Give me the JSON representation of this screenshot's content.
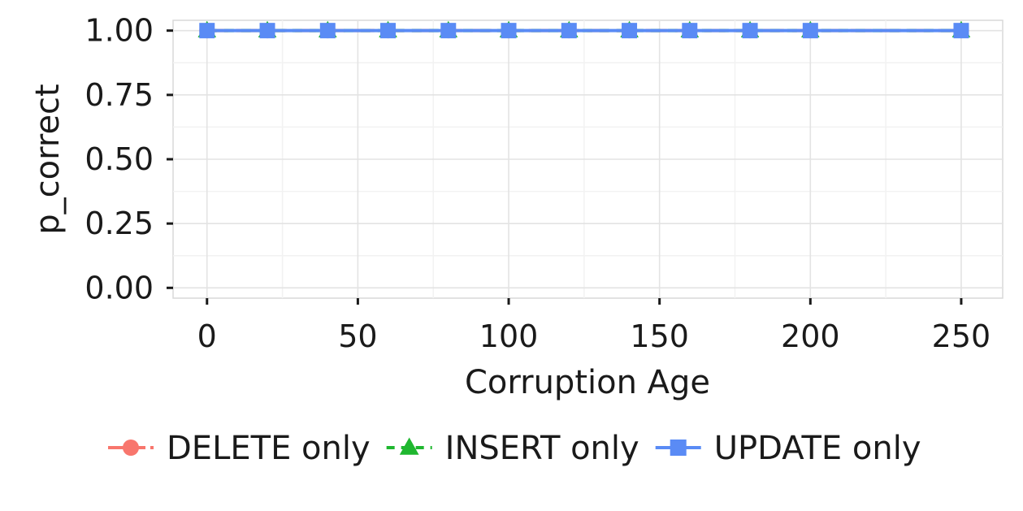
{
  "chart_data": {
    "type": "line",
    "title": "",
    "xlabel": "Corruption Age",
    "ylabel": "p_correct",
    "xlim": [
      -11.25,
      263.75
    ],
    "ylim": [
      -0.04,
      1.04
    ],
    "xticks": [
      0,
      50,
      100,
      150,
      200,
      250
    ],
    "xtick_labels": [
      "0",
      "50",
      "100",
      "150",
      "200",
      "250"
    ],
    "yticks": [
      0,
      0.25,
      0.5,
      0.75,
      1
    ],
    "ytick_labels": [
      "0.00",
      "0.25",
      "0.50",
      "0.75",
      "1.00"
    ],
    "x": [
      0,
      20,
      40,
      60,
      80,
      100,
      120,
      140,
      160,
      180,
      200,
      250
    ],
    "series": [
      {
        "name": "DELETE only",
        "values": [
          1,
          1,
          1,
          1,
          1,
          1,
          1,
          1,
          1,
          1,
          1,
          1
        ],
        "color": "#F8766D",
        "marker": "circle",
        "line_style": "longdash"
      },
      {
        "name": "INSERT only",
        "values": [
          1,
          1,
          1,
          1,
          1,
          1,
          1,
          1,
          1,
          1,
          1,
          1
        ],
        "color": "#1FB72F",
        "marker": "triangle",
        "line_style": "dashed"
      },
      {
        "name": "UPDATE only",
        "values": [
          1,
          1,
          1,
          1,
          1,
          1,
          1,
          1,
          1,
          1,
          1,
          1
        ],
        "color": "#5A8BF5",
        "marker": "square",
        "line_style": "solid"
      }
    ],
    "grid": true,
    "legend_position": "bottom"
  }
}
